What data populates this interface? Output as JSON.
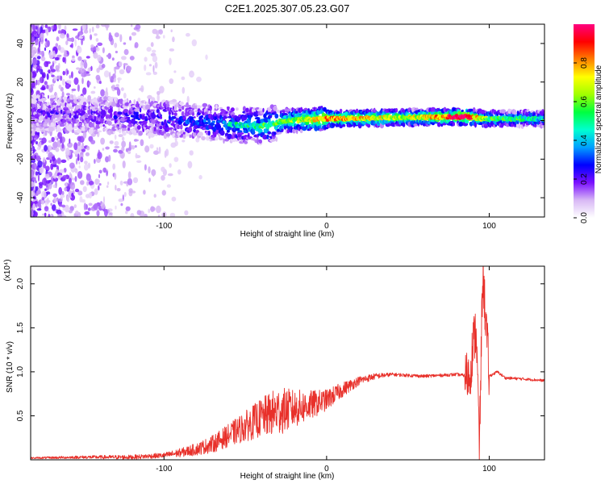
{
  "title": "C2E1.2025.307.05.23.G07",
  "chart_data": [
    {
      "type": "heatmap",
      "name": "spectrogram",
      "xlabel": "Height of straight line (km)",
      "ylabel": "Frequency (Hz)",
      "xlim": [
        -182,
        134
      ],
      "ylim": [
        -50,
        50
      ],
      "xticks": [
        -100,
        0,
        100
      ],
      "yticks": [
        -40,
        -20,
        0,
        20,
        40
      ],
      "colorbar": {
        "label": "Normalized spectral amplitude",
        "range": [
          0,
          1
        ],
        "ticks": [
          "0.0",
          "0.2",
          "0.4",
          "0.6",
          "0.8"
        ],
        "colors": [
          "#ffffff",
          "#d8b8f5",
          "#7a10ff",
          "#0000ff",
          "#00a0ff",
          "#00ffd0",
          "#00ff40",
          "#a0ff00",
          "#ffff00",
          "#ff8000",
          "#ff0000",
          "#ff0080"
        ]
      },
      "ridge": [
        {
          "x": -182,
          "f": 4
        },
        {
          "x": -140,
          "f": 3
        },
        {
          "x": -100,
          "f": 1
        },
        {
          "x": -60,
          "f": -2
        },
        {
          "x": -40,
          "f": -3
        },
        {
          "x": -25,
          "f": 0
        },
        {
          "x": 0,
          "f": 1
        },
        {
          "x": 40,
          "f": 1.5
        },
        {
          "x": 88,
          "f": 2
        },
        {
          "x": 95,
          "f": 1
        },
        {
          "x": 134,
          "f": 1
        }
      ],
      "ridge_strength": [
        {
          "x": -182,
          "a": 0.15
        },
        {
          "x": -100,
          "a": 0.25
        },
        {
          "x": -60,
          "a": 0.35
        },
        {
          "x": -20,
          "a": 0.55
        },
        {
          "x": 0,
          "a": 0.75
        },
        {
          "x": 50,
          "a": 0.6
        },
        {
          "x": 85,
          "a": 0.85
        },
        {
          "x": 100,
          "a": 0.5
        },
        {
          "x": 134,
          "a": 0.4
        }
      ]
    },
    {
      "type": "line",
      "name": "snr",
      "xlabel": "Height of straight line (km)",
      "ylabel": "SNR (10 * v/v)",
      "yscale_label": "(x10⁴)",
      "xlim": [
        -182,
        134
      ],
      "ylim": [
        0,
        2.2
      ],
      "xticks": [
        -100,
        0,
        100
      ],
      "yticks": [
        0.5,
        1.0,
        1.5,
        2.0
      ],
      "ytick_labels": [
        "0.5",
        "1.0",
        "1.5",
        "2.0"
      ],
      "color": "#e8302a",
      "series": [
        {
          "name": "SNR",
          "x": [
            -182,
            -150,
            -120,
            -100,
            -90,
            -80,
            -70,
            -60,
            -50,
            -40,
            -30,
            -20,
            -10,
            0,
            10,
            20,
            30,
            40,
            60,
            80,
            88,
            90,
            92,
            94,
            96,
            100,
            105,
            110,
            120,
            134
          ],
          "y": [
            0.02,
            0.03,
            0.03,
            0.05,
            0.08,
            0.12,
            0.18,
            0.28,
            0.38,
            0.48,
            0.55,
            0.58,
            0.62,
            0.68,
            0.8,
            0.9,
            0.95,
            0.97,
            0.95,
            0.97,
            0.95,
            1.3,
            1.5,
            0.12,
            2.15,
            0.95,
            1.0,
            0.93,
            0.92,
            0.9
          ]
        }
      ],
      "spike_amplitude": [
        {
          "x": -182,
          "a": 0.01
        },
        {
          "x": -100,
          "a": 0.03
        },
        {
          "x": -80,
          "a": 0.07
        },
        {
          "x": -60,
          "a": 0.13
        },
        {
          "x": -40,
          "a": 0.22
        },
        {
          "x": -30,
          "a": 0.28
        },
        {
          "x": -20,
          "a": 0.22
        },
        {
          "x": 0,
          "a": 0.12
        },
        {
          "x": 20,
          "a": 0.05
        },
        {
          "x": 40,
          "a": 0.02
        },
        {
          "x": 134,
          "a": 0.015
        }
      ]
    }
  ]
}
